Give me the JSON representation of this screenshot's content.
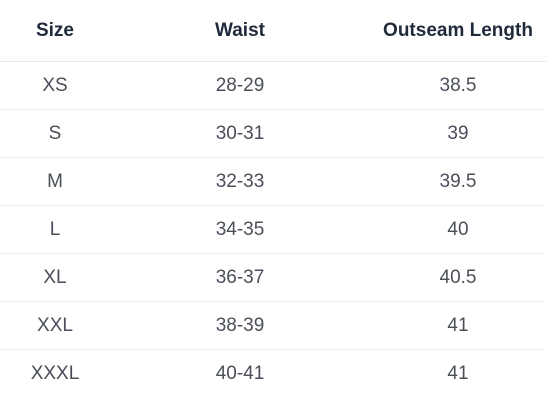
{
  "table": {
    "headers": [
      "Size",
      "Waist",
      "Outseam Length"
    ],
    "rows": [
      [
        "XS",
        "28-29",
        "38.5"
      ],
      [
        "S",
        "30-31",
        "39"
      ],
      [
        "M",
        "32-33",
        "39.5"
      ],
      [
        "L",
        "34-35",
        "40"
      ],
      [
        "XL",
        "36-37",
        "40.5"
      ],
      [
        "XXL",
        "38-39",
        "41"
      ],
      [
        "XXXL",
        "40-41",
        "41"
      ]
    ]
  }
}
